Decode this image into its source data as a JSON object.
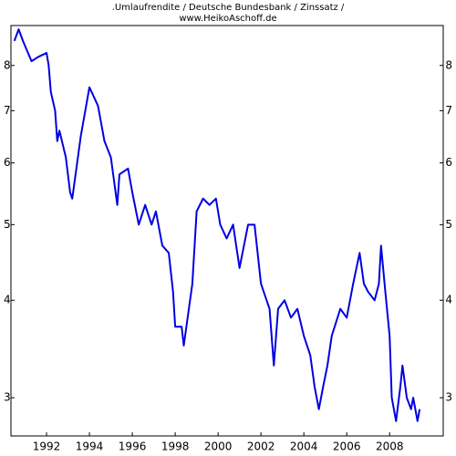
{
  "chart_data": {
    "type": "line",
    "title": ".Umlaufrendite / Deutsche Bundesbank / Zinssatz /",
    "subtitle": "www.HeikoAschoff.de",
    "log_y": true,
    "grid": false,
    "xlim": [
      1990.34,
      2010.5
    ],
    "xticks": [
      1992,
      1994,
      1996,
      1998,
      2000,
      2002,
      2004,
      2006,
      2008
    ],
    "ylim": [
      2.68,
      9
    ],
    "yticks": [
      3,
      4,
      5,
      6,
      7,
      8
    ],
    "x": [
      1990.5,
      1990.7,
      1990.9,
      1991.3,
      1991.6,
      1992.0,
      1992.1,
      1992.2,
      1992.4,
      1992.5,
      1992.6,
      1992.9,
      1993.1,
      1993.2,
      1993.6,
      1994.0,
      1994.2,
      1994.4,
      1994.7,
      1995.0,
      1995.3,
      1995.4,
      1995.8,
      1996.0,
      1996.3,
      1996.6,
      1996.9,
      1997.1,
      1997.4,
      1997.7,
      1997.9,
      1998.0,
      1998.3,
      1998.4,
      1998.8,
      1999.0,
      1999.3,
      1999.6,
      1999.9,
      2000.1,
      2000.4,
      2000.7,
      2001.0,
      2001.4,
      2001.7,
      2002.0,
      2002.4,
      2002.6,
      2002.8,
      2003.1,
      2003.4,
      2003.7,
      2004.0,
      2004.3,
      2004.5,
      2004.7,
      2004.9,
      2005.1,
      2005.3,
      2005.7,
      2006.0,
      2006.3,
      2006.6,
      2006.8,
      2007.0,
      2007.3,
      2007.5,
      2007.6,
      2007.8,
      2008.0,
      2008.1,
      2008.3,
      2008.5,
      2008.6,
      2008.8,
      2009.0,
      2009.1,
      2009.3,
      2009.4
    ],
    "series": [
      {
        "color": "#0000e0",
        "values": [
          8.6,
          8.9,
          8.6,
          8.1,
          8.2,
          8.3,
          8.0,
          7.4,
          7.0,
          6.4,
          6.6,
          6.1,
          5.5,
          5.4,
          6.5,
          7.5,
          7.3,
          7.1,
          6.4,
          6.1,
          5.3,
          5.8,
          5.9,
          5.5,
          5.0,
          5.3,
          5.0,
          5.2,
          4.7,
          4.6,
          4.1,
          3.7,
          3.7,
          3.5,
          4.2,
          5.2,
          5.4,
          5.3,
          5.4,
          5.0,
          4.8,
          5.0,
          4.4,
          5.0,
          5.0,
          4.2,
          3.9,
          3.3,
          3.9,
          4.0,
          3.8,
          3.9,
          3.6,
          3.4,
          3.1,
          2.9,
          3.1,
          3.3,
          3.6,
          3.9,
          3.8,
          4.2,
          4.6,
          4.2,
          4.1,
          4.0,
          4.2,
          4.7,
          4.1,
          3.6,
          3.0,
          2.8,
          3.1,
          3.3,
          3.0,
          2.9,
          3.0,
          2.8,
          2.9
        ]
      }
    ]
  }
}
